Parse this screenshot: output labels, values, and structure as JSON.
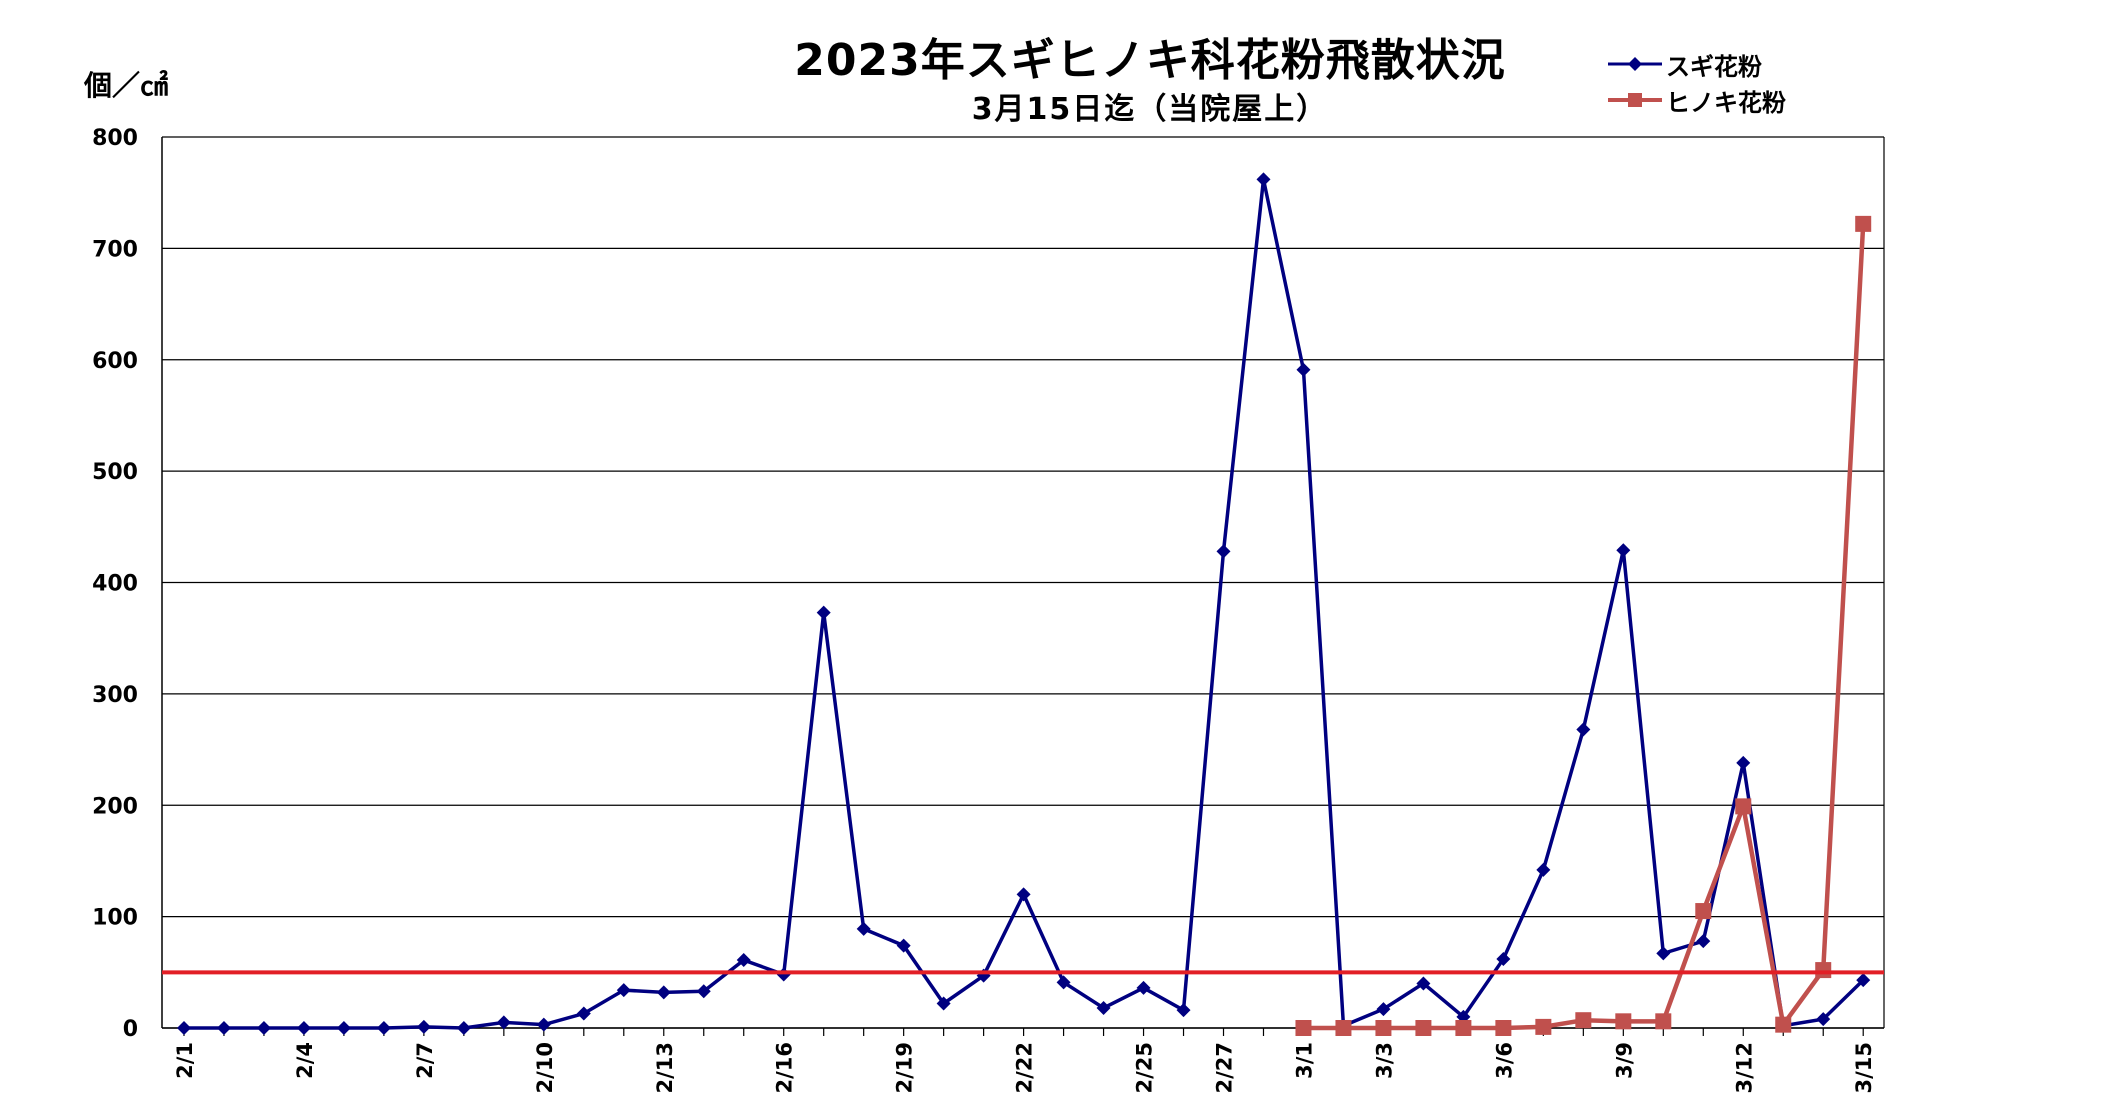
{
  "chart_data": {
    "type": "line",
    "title": "2023年スギヒノキ科花粉飛散状況",
    "subtitle": "3月15日迄（当院屋上）",
    "ylabel": "個／㎠",
    "ylim": [
      0,
      800
    ],
    "yticks": [
      0,
      100,
      200,
      300,
      400,
      500,
      600,
      700,
      800
    ],
    "grid": true,
    "legend_position": "top-right",
    "x": [
      "2/1",
      "2/2",
      "2/3",
      "2/4",
      "2/5",
      "2/6",
      "2/7",
      "2/8",
      "2/9",
      "2/10",
      "2/11",
      "2/12",
      "2/13",
      "2/14",
      "2/15",
      "2/16",
      "2/17",
      "2/18",
      "2/19",
      "2/20",
      "2/21",
      "2/22",
      "2/23",
      "2/24",
      "2/25",
      "2/26",
      "2/27",
      "2/28",
      "3/1",
      "3/2",
      "3/3",
      "3/4",
      "3/5",
      "3/6",
      "3/7",
      "3/8",
      "3/9",
      "3/10",
      "3/11",
      "3/12",
      "3/13",
      "3/14",
      "3/15"
    ],
    "x_tick_labels": [
      "2/1",
      "",
      "",
      "2/4",
      "",
      "",
      "2/7",
      "",
      "",
      "2/10",
      "",
      "",
      "2/13",
      "",
      "",
      "2/16",
      "",
      "",
      "2/19",
      "",
      "",
      "2/22",
      "",
      "",
      "2/25",
      "",
      "2/27",
      "",
      "3/1",
      "",
      "3/3",
      "",
      "",
      "3/6",
      "",
      "",
      "3/9",
      "",
      "",
      "3/12",
      "",
      "",
      "3/15"
    ],
    "reference_line": {
      "value": 50,
      "color": "#e21f26"
    },
    "series": [
      {
        "name": "スギ花粉",
        "color": "#000080",
        "marker": "diamond",
        "values": [
          0,
          0,
          0,
          0,
          0,
          0,
          1,
          0,
          5,
          3,
          13,
          34,
          32,
          33,
          61,
          48,
          373,
          89,
          74,
          22,
          47,
          120,
          41,
          18,
          36,
          16,
          428,
          762,
          591,
          2,
          17,
          40,
          10,
          62,
          142,
          268,
          429,
          67,
          78,
          238,
          2,
          8,
          43
        ]
      },
      {
        "name": "ヒノキ花粉",
        "color": "#c0504d",
        "marker": "square",
        "values": [
          null,
          null,
          null,
          null,
          null,
          null,
          null,
          null,
          null,
          null,
          null,
          null,
          null,
          null,
          null,
          null,
          null,
          null,
          null,
          null,
          null,
          null,
          null,
          null,
          null,
          null,
          null,
          null,
          0,
          0,
          0,
          0,
          0,
          0,
          1,
          7,
          6,
          6,
          105,
          199,
          3,
          52,
          722
        ]
      }
    ]
  }
}
